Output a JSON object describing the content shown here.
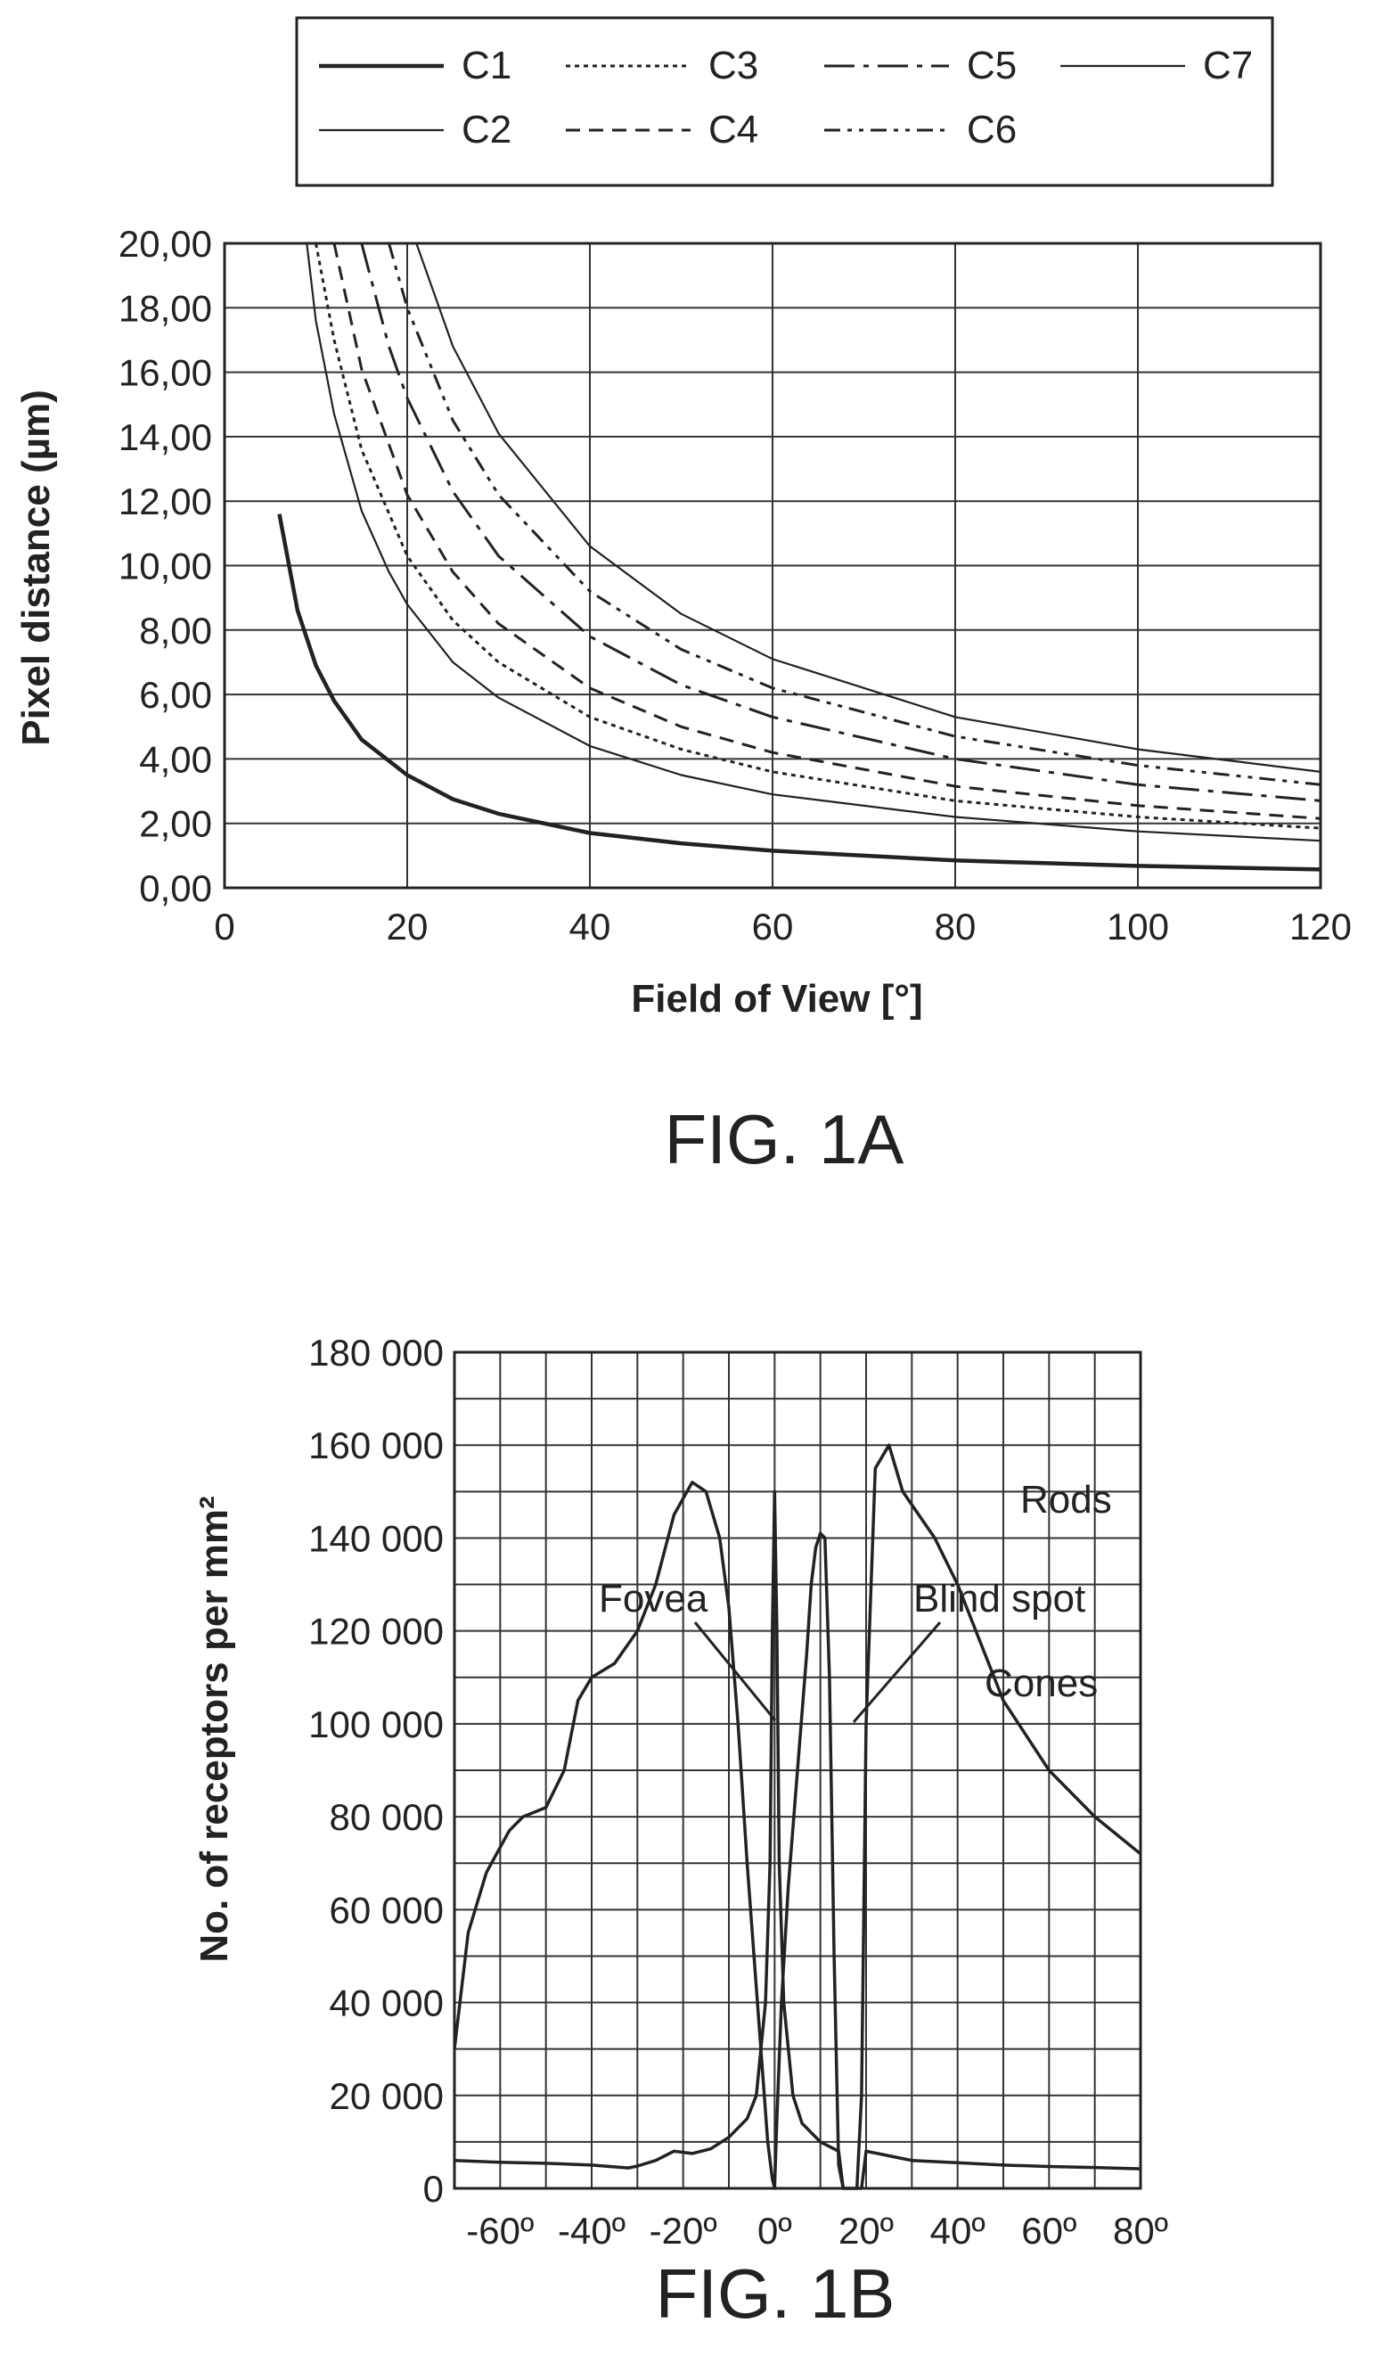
{
  "figure_1a": {
    "label": "FIG. 1A"
  },
  "figure_1b": {
    "label": "FIG. 1B"
  },
  "chart_data": [
    {
      "type": "line",
      "title": "",
      "xlabel": "Field of View [°]",
      "ylabel": "Pixel distance (µm)",
      "xlim": [
        0,
        120
      ],
      "ylim": [
        0,
        20
      ],
      "xticks": [
        "0",
        "20",
        "40",
        "60",
        "80",
        "100",
        "120"
      ],
      "yticks": [
        "0,00",
        "2,00",
        "4,00",
        "6,00",
        "8,00",
        "10,00",
        "12,00",
        "14,00",
        "16,00",
        "18,00",
        "20,00"
      ],
      "grid": true,
      "legend_position": "top",
      "series": [
        {
          "name": "C1",
          "style": "solid-thick",
          "x": [
            6,
            8,
            10,
            12,
            15,
            20,
            25,
            30,
            40,
            50,
            60,
            80,
            100,
            120
          ],
          "y": [
            11.6,
            8.6,
            6.9,
            5.8,
            4.6,
            3.5,
            2.75,
            2.3,
            1.7,
            1.38,
            1.15,
            0.85,
            0.68,
            0.57
          ]
        },
        {
          "name": "C2",
          "style": "solid-thin",
          "x": [
            9,
            10,
            12,
            15,
            18,
            20,
            25,
            30,
            40,
            50,
            60,
            80,
            100,
            120
          ],
          "y": [
            20.0,
            17.6,
            14.7,
            11.7,
            9.8,
            8.8,
            7.0,
            5.9,
            4.4,
            3.5,
            2.9,
            2.2,
            1.75,
            1.46
          ]
        },
        {
          "name": "C3",
          "style": "dotted",
          "x": [
            10,
            12,
            15,
            20,
            25,
            30,
            40,
            50,
            60,
            80,
            100,
            120
          ],
          "y": [
            20.0,
            17.0,
            13.6,
            10.3,
            8.3,
            7.0,
            5.3,
            4.3,
            3.6,
            2.7,
            2.2,
            1.85
          ]
        },
        {
          "name": "C4",
          "style": "dashed",
          "x": [
            12,
            15,
            20,
            25,
            30,
            40,
            50,
            60,
            80,
            100,
            120
          ],
          "y": [
            20.0,
            16.1,
            12.2,
            9.8,
            8.2,
            6.2,
            5.0,
            4.2,
            3.15,
            2.55,
            2.15
          ]
        },
        {
          "name": "C5",
          "style": "long-dash-dot",
          "x": [
            15,
            18,
            20,
            25,
            30,
            40,
            50,
            60,
            80,
            100,
            120
          ],
          "y": [
            20.0,
            16.8,
            15.2,
            12.3,
            10.3,
            7.8,
            6.3,
            5.3,
            4.0,
            3.2,
            2.7
          ]
        },
        {
          "name": "C6",
          "style": "dash-dot-dot",
          "x": [
            18,
            20,
            25,
            30,
            40,
            50,
            60,
            80,
            100,
            120
          ],
          "y": [
            20.0,
            18.0,
            14.5,
            12.2,
            9.2,
            7.4,
            6.2,
            4.7,
            3.8,
            3.2
          ]
        },
        {
          "name": "C7",
          "style": "solid-thin",
          "x": [
            21,
            25,
            30,
            40,
            50,
            60,
            80,
            100,
            120
          ],
          "y": [
            20.0,
            16.8,
            14.1,
            10.6,
            8.5,
            7.1,
            5.3,
            4.3,
            3.6
          ]
        }
      ]
    },
    {
      "type": "line",
      "title": "",
      "xlabel": "",
      "ylabel": "No. of receptors per mm²",
      "xlim": [
        -70,
        80
      ],
      "ylim": [
        0,
        180000
      ],
      "xticks": [
        "-60º",
        "-40º",
        "-20º",
        "0º",
        "20º",
        "40º",
        "60º",
        "80º"
      ],
      "yticks": [
        "0",
        "20 000",
        "40 000",
        "60 000",
        "80 000",
        "100 000",
        "120 000",
        "140 000",
        "160 000",
        "180 000"
      ],
      "grid": true,
      "series": [
        {
          "name": "Rods",
          "x": [
            -70,
            -67,
            -63,
            -58,
            -55,
            -50,
            -46,
            -43,
            -40,
            -35,
            -30,
            -26,
            -22,
            -18,
            -15,
            -12,
            -10,
            -8,
            -6,
            -3,
            -1.5,
            -0.5,
            0,
            0.5,
            1.5,
            3,
            5,
            7,
            8,
            9,
            10,
            11,
            12,
            13,
            14,
            15,
            16,
            17,
            18,
            19,
            20,
            22,
            25,
            28,
            35,
            40,
            50,
            60,
            70,
            80
          ],
          "y": [
            30000,
            55000,
            68000,
            77000,
            80000,
            82000,
            90000,
            105000,
            110000,
            113000,
            120000,
            130000,
            145000,
            152000,
            150000,
            140000,
            125000,
            100000,
            70000,
            30000,
            10000,
            2000,
            0,
            15000,
            40000,
            65000,
            90000,
            115000,
            130000,
            138000,
            141000,
            140000,
            110000,
            50000,
            5000,
            0,
            0,
            0,
            0,
            20000,
            100000,
            155000,
            160000,
            150000,
            140000,
            130000,
            105000,
            90000,
            80000,
            72000
          ]
        },
        {
          "name": "Cones",
          "x": [
            -70,
            -60,
            -50,
            -40,
            -32,
            -30,
            -26,
            -22,
            -18,
            -14,
            -10,
            -6,
            -4,
            -2,
            -1,
            -0.5,
            0,
            0.5,
            1,
            2,
            4,
            6,
            10,
            14,
            15,
            16,
            17,
            18,
            19,
            20,
            25,
            30,
            40,
            50,
            60,
            70,
            80
          ],
          "y": [
            6000,
            5600,
            5400,
            5000,
            4400,
            4800,
            6000,
            8000,
            7500,
            8500,
            11000,
            15000,
            20000,
            40000,
            70000,
            120000,
            150000,
            120000,
            70000,
            40000,
            20000,
            14000,
            10000,
            8000,
            0,
            0,
            0,
            0,
            0,
            8000,
            7000,
            6000,
            5500,
            5000,
            4700,
            4500,
            4200
          ]
        }
      ],
      "annotations": [
        "Fovea",
        "Blind spot",
        "Rods",
        "Cones"
      ]
    }
  ]
}
